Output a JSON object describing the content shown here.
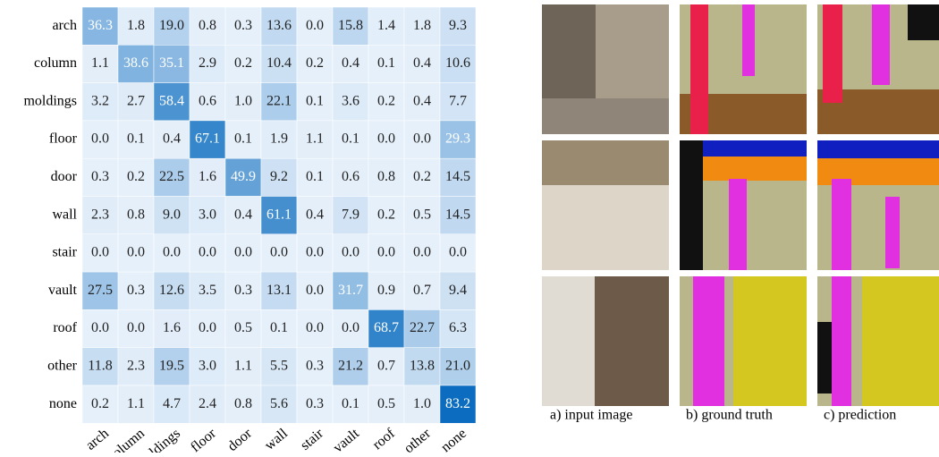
{
  "chart_data": {
    "type": "heatmap",
    "rows": [
      "arch",
      "column",
      "moldings",
      "floor",
      "door",
      "wall",
      "stair",
      "vault",
      "roof",
      "other",
      "none"
    ],
    "categories": [
      "arch",
      "column",
      "moldings",
      "floor",
      "door",
      "wall",
      "stair",
      "vault",
      "roof",
      "other",
      "none"
    ],
    "values": [
      [
        36.3,
        1.8,
        19.0,
        0.8,
        0.3,
        13.6,
        0.0,
        15.8,
        1.4,
        1.8,
        9.3
      ],
      [
        1.1,
        38.6,
        35.1,
        2.9,
        0.2,
        10.4,
        0.2,
        0.4,
        0.1,
        0.4,
        10.6
      ],
      [
        3.2,
        2.7,
        58.4,
        0.6,
        1.0,
        22.1,
        0.1,
        3.6,
        0.2,
        0.4,
        7.7
      ],
      [
        0.0,
        0.1,
        0.4,
        67.1,
        0.1,
        1.9,
        1.1,
        0.1,
        0.0,
        0.0,
        29.3
      ],
      [
        0.3,
        0.2,
        22.5,
        1.6,
        49.9,
        9.2,
        0.1,
        0.6,
        0.8,
        0.2,
        14.5
      ],
      [
        2.3,
        0.8,
        9.0,
        3.0,
        0.4,
        61.1,
        0.4,
        7.9,
        0.2,
        0.5,
        14.5
      ],
      [
        0.0,
        0.0,
        0.0,
        0.0,
        0.0,
        0.0,
        0.0,
        0.0,
        0.0,
        0.0,
        0.0
      ],
      [
        27.5,
        0.3,
        12.6,
        3.5,
        0.3,
        13.1,
        0.0,
        31.7,
        0.9,
        0.7,
        9.4
      ],
      [
        0.0,
        0.0,
        1.6,
        0.0,
        0.5,
        0.1,
        0.0,
        0.0,
        68.7,
        22.7,
        6.3
      ],
      [
        11.8,
        2.3,
        19.5,
        3.0,
        1.1,
        5.5,
        0.3,
        21.2,
        0.7,
        13.8,
        21.0
      ],
      [
        0.2,
        1.1,
        4.7,
        2.4,
        0.8,
        5.6,
        0.3,
        0.1,
        0.5,
        1.0,
        83.2
      ]
    ],
    "value_labels": [
      [
        "36.3",
        "1.8",
        "19.0",
        "0.8",
        "0.3",
        "13.6",
        "0.0",
        "15.8",
        "1.4",
        "1.8",
        "9.3"
      ],
      [
        "1.1",
        "38.6",
        "35.1",
        "2.9",
        "0.2",
        "10.4",
        "0.2",
        "0.4",
        "0.1",
        "0.4",
        "10.6"
      ],
      [
        "3.2",
        "2.7",
        "58.4",
        "0.6",
        "1.0",
        "22.1",
        "0.1",
        "3.6",
        "0.2",
        "0.4",
        "7.7"
      ],
      [
        "0.0",
        "0.1",
        "0.4",
        "67.1",
        "0.1",
        "1.9",
        "1.1",
        "0.1",
        "0.0",
        "0.0",
        "29.3"
      ],
      [
        "0.3",
        "0.2",
        "22.5",
        "1.6",
        "49.9",
        "9.2",
        "0.1",
        "0.6",
        "0.8",
        "0.2",
        "14.5"
      ],
      [
        "2.3",
        "0.8",
        "9.0",
        "3.0",
        "0.4",
        "61.1",
        "0.4",
        "7.9",
        "0.2",
        "0.5",
        "14.5"
      ],
      [
        "0.0",
        "0.0",
        "0.0",
        "0.0",
        "0.0",
        "0.0",
        "0.0",
        "0.0",
        "0.0",
        "0.0",
        "0.0"
      ],
      [
        "27.5",
        "0.3",
        "12.6",
        "3.5",
        "0.3",
        "13.1",
        "0.0",
        "31.7",
        "0.9",
        "0.7",
        "9.4"
      ],
      [
        "0.0",
        "0.0",
        "1.6",
        "0.0",
        "0.5",
        "0.1",
        "0.0",
        "0.0",
        "68.7",
        "22.7",
        "6.3"
      ],
      [
        "11.8",
        "2.3",
        "19.5",
        "3.0",
        "1.1",
        "5.5",
        "0.3",
        "21.2",
        "0.7",
        "13.8",
        "21.0"
      ],
      [
        "0.2",
        "1.1",
        "4.7",
        "2.4",
        "0.8",
        "5.6",
        "0.3",
        "0.1",
        "0.5",
        "1.0",
        "83.2"
      ]
    ],
    "colors": [
      "#e6f0fa",
      "#0b6cc0"
    ]
  },
  "images": {
    "captions": [
      "a) input image",
      "b) ground truth",
      "c) prediction"
    ]
  }
}
